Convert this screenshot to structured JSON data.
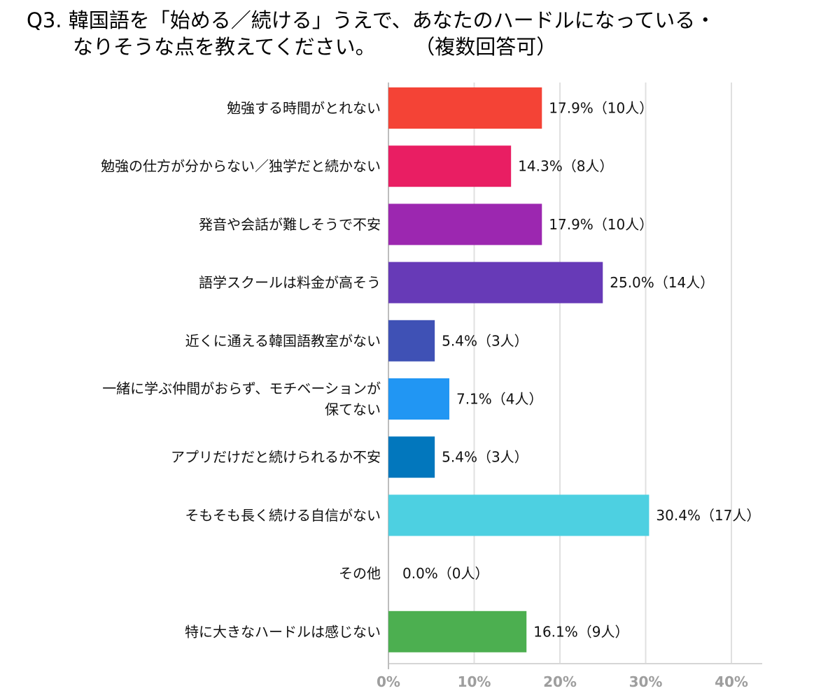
{
  "chart_data": {
    "type": "bar",
    "orientation": "horizontal",
    "title_line1": "Q3. 韓国語を「始める／続ける」うえで、あなたのハードルになっている・",
    "title_line2": "なりそうな点を教えてください。",
    "title_note": "（複数回答可）",
    "xlabel": "",
    "ylabel": "",
    "xlim": [
      0,
      40
    ],
    "grid": true,
    "ticks": [
      "0%",
      "10%",
      "20%",
      "30%",
      "40%"
    ],
    "tick_values": [
      0,
      10,
      20,
      30,
      40
    ],
    "categories": [
      [
        "勉強する時間がとれない"
      ],
      [
        "勉強の仕方が分からない／独学だと続かない"
      ],
      [
        "発音や会話が難しそうで不安"
      ],
      [
        "語学スクールは料金が高そう"
      ],
      [
        "近くに通える韓国語教室がない"
      ],
      [
        "一緒に学ぶ仲間がおらず、モチベーションが",
        "保てない"
      ],
      [
        "アプリだけだと続けられるか不安"
      ],
      [
        "そもそも長く続ける自信がない"
      ],
      [
        "その他"
      ],
      [
        "特に大きなハードルは感じない"
      ]
    ],
    "values": [
      17.9,
      14.3,
      17.9,
      25.0,
      5.4,
      7.1,
      5.4,
      30.4,
      0.0,
      16.1
    ],
    "labels": [
      "17.9%（10人）",
      "14.3%（8人）",
      "17.9%（10人）",
      "25.0%（14人）",
      "5.4%（3人）",
      "7.1%（4人）",
      "5.4%（3人）",
      "30.4%（17人）",
      "0.0%（0人）",
      "16.1%（9人）"
    ],
    "colors": [
      "#f44336",
      "#e91e63",
      "#9c27b0",
      "#673ab7",
      "#3f51b5",
      "#2196f3",
      "#0277bd",
      "#4dd0e1",
      "#00bcd4",
      "#4caf50"
    ]
  }
}
